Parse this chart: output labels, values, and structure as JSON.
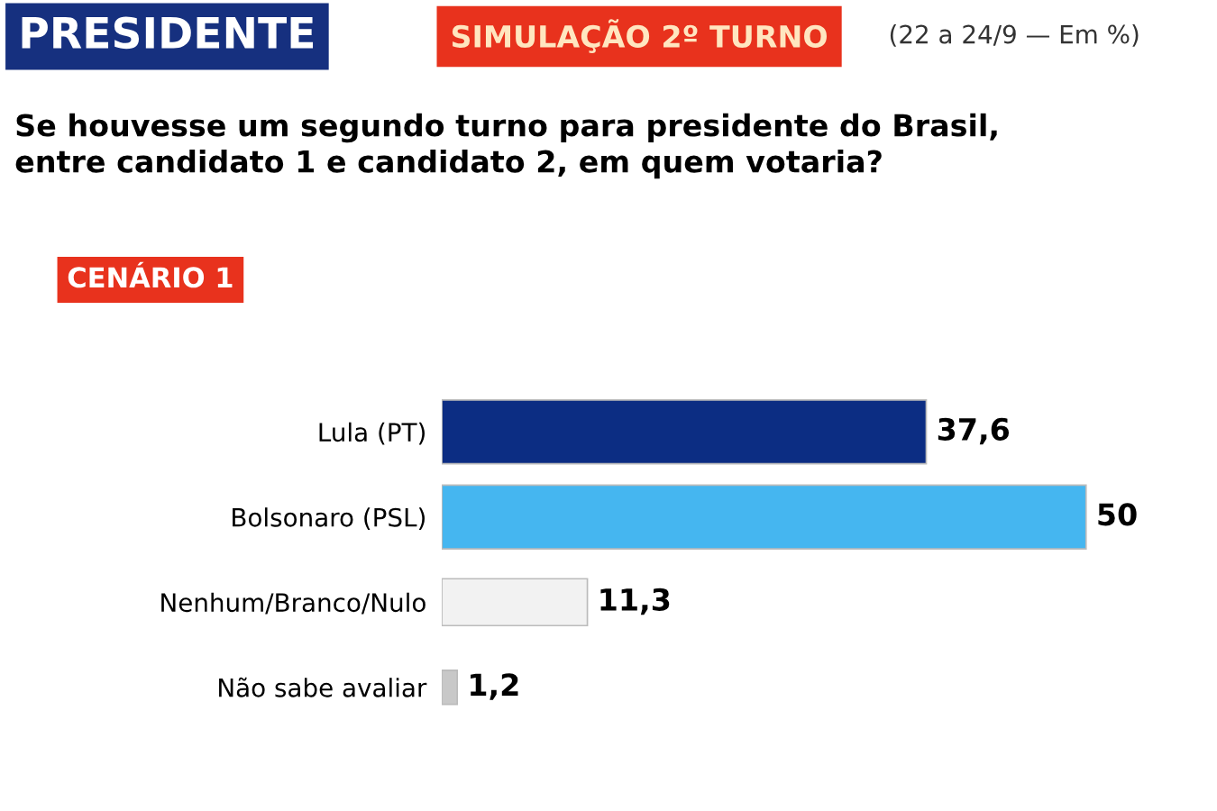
{
  "chart_data": {
    "type": "bar",
    "orientation": "horizontal",
    "title": "PRESIDENTE",
    "subtitle": "SIMULAÇÃO 2º TURNO",
    "annotations": [
      "(22 a 24/9 — Em %)",
      "Se houvesse um segundo turno para presidente do Brasil,\nentre candidato 1 e candidato 2, em quem votaria?",
      "CENÁRIO 1"
    ],
    "categories": [
      "Lula (PT)",
      "Bolsonaro (PSL)",
      "Nenhum/Branco/Nulo",
      "Não sabe avaliar"
    ],
    "values": [
      37.6,
      50,
      11.3,
      1.2
    ],
    "colors": [
      "#0c2d83",
      "#45b6f0",
      "#f2f2f2",
      "#c8c8c8"
    ],
    "value_labels": [
      "37,6",
      "50",
      "11,3",
      "1,2"
    ],
    "grid": false,
    "legend": false
  }
}
